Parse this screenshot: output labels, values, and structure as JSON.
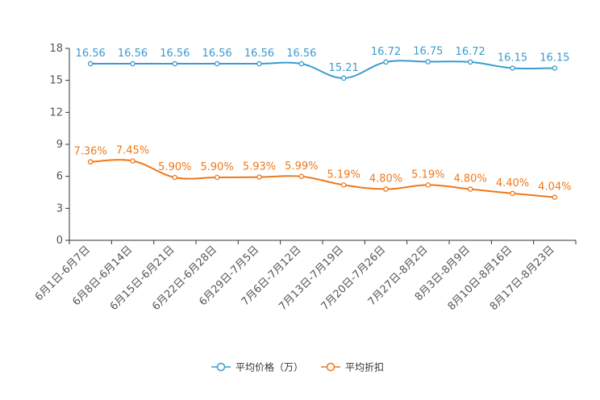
{
  "chart_data": {
    "type": "line",
    "categories": [
      "6月1日-6月7日",
      "6月8日-6月14日",
      "6月15日-6月21日",
      "6月22日-6月28日",
      "6月29日-7月5日",
      "7月6日-7月12日",
      "7月13日-7月19日",
      "7月20日-7月26日",
      "7月27日-8月2日",
      "8月3日-8月9日",
      "8月10日-8月16日",
      "8月17日-8月23日"
    ],
    "ylim": [
      0,
      18
    ],
    "yticks": [
      0,
      3,
      6,
      9,
      12,
      15,
      18
    ],
    "grid": false,
    "legend_position": "bottom-center",
    "series": [
      {
        "name": "平均价格（万）",
        "color": "#3a9bd0",
        "values": [
          16.56,
          16.56,
          16.56,
          16.56,
          16.56,
          16.56,
          15.21,
          16.72,
          16.75,
          16.72,
          16.15,
          16.15
        ],
        "labels": [
          "16.56",
          "16.56",
          "16.56",
          "16.56",
          "16.56",
          "16.56",
          "15.21",
          "16.72",
          "16.75",
          "16.72",
          "16.15",
          "16.15"
        ]
      },
      {
        "name": "平均折扣",
        "color": "#f07818",
        "values": [
          7.36,
          7.45,
          5.9,
          5.9,
          5.93,
          5.99,
          5.19,
          4.8,
          5.19,
          4.8,
          4.4,
          4.04
        ],
        "labels": [
          "7.36%",
          "7.45%",
          "5.90%",
          "5.90%",
          "5.93%",
          "5.99%",
          "5.19%",
          "4.80%",
          "5.19%",
          "4.80%",
          "4.40%",
          "4.04%"
        ]
      }
    ]
  }
}
